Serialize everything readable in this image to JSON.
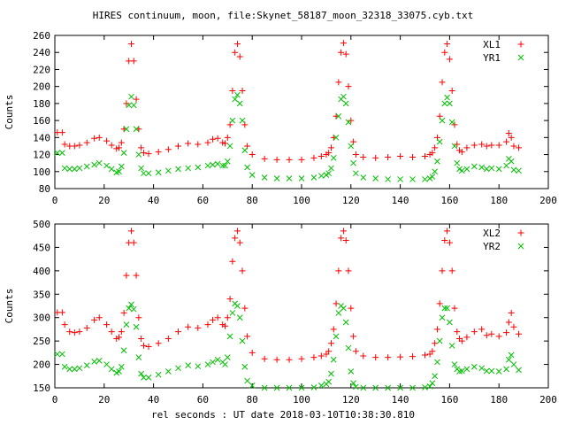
{
  "title": "HIRES continuum, moon, file:Skynet_58187_moon_32318_33075.cyb.txt",
  "xlabel": "rel seconds : UT date 2018-03-10T10:38:30.810",
  "colors": {
    "red": "#ff0000",
    "green": "#00c000"
  },
  "chart_data": [
    {
      "type": "scatter",
      "ylabel": "Counts",
      "xlim": [
        0,
        200
      ],
      "ylim": [
        80,
        260
      ],
      "xticks": [
        0,
        20,
        40,
        60,
        80,
        100,
        120,
        140,
        160,
        180,
        200
      ],
      "yticks": [
        80,
        100,
        120,
        140,
        160,
        180,
        200,
        220,
        240,
        260
      ],
      "legend": "top-right",
      "series": [
        {
          "name": "XL1",
          "marker": "+",
          "color": "#ff0000",
          "x": [
            1,
            3,
            4,
            6,
            8,
            10,
            13,
            16,
            18,
            21,
            23,
            25,
            26,
            27,
            28,
            29,
            30,
            31,
            32,
            33,
            34,
            35,
            36,
            38,
            42,
            46,
            50,
            54,
            58,
            62,
            64,
            66,
            68,
            69,
            70,
            71,
            72,
            73,
            74,
            75,
            76,
            77,
            78,
            80,
            85,
            90,
            95,
            100,
            105,
            108,
            110,
            111,
            112,
            113,
            114,
            115,
            116,
            117,
            118,
            119,
            120,
            121,
            122,
            125,
            130,
            135,
            140,
            145,
            150,
            152,
            153,
            154,
            155,
            156,
            157,
            158,
            159,
            160,
            161,
            162,
            163,
            164,
            165,
            167,
            170,
            173,
            175,
            177,
            180,
            183,
            184,
            185,
            186,
            188
          ],
          "y": [
            146,
            146,
            132,
            130,
            130,
            131,
            134,
            139,
            140,
            136,
            131,
            127,
            128,
            134,
            150,
            180,
            230,
            250,
            230,
            185,
            150,
            128,
            122,
            121,
            123,
            126,
            130,
            133,
            132,
            134,
            138,
            139,
            134,
            133,
            140,
            155,
            195,
            240,
            250,
            235,
            195,
            155,
            130,
            120,
            115,
            114,
            114,
            114,
            116,
            118,
            120,
            122,
            128,
            140,
            165,
            205,
            240,
            251,
            238,
            200,
            160,
            135,
            120,
            117,
            116,
            117,
            118,
            117,
            118,
            120,
            122,
            128,
            140,
            165,
            205,
            240,
            250,
            232,
            195,
            155,
            132,
            125,
            123,
            128,
            131,
            132,
            130,
            131,
            131,
            135,
            145,
            140,
            130,
            128
          ]
        },
        {
          "name": "YR1",
          "marker": "x",
          "color": "#00c000",
          "x": [
            1,
            3,
            4,
            6,
            8,
            10,
            13,
            16,
            18,
            21,
            23,
            25,
            26,
            27,
            28,
            29,
            30,
            31,
            32,
            33,
            34,
            35,
            36,
            38,
            42,
            46,
            50,
            54,
            58,
            62,
            64,
            66,
            68,
            69,
            70,
            71,
            72,
            73,
            74,
            75,
            76,
            77,
            78,
            80,
            85,
            90,
            95,
            100,
            105,
            108,
            110,
            111,
            112,
            113,
            114,
            115,
            116,
            117,
            118,
            119,
            120,
            121,
            122,
            125,
            130,
            135,
            140,
            145,
            150,
            152,
            153,
            154,
            155,
            156,
            157,
            158,
            159,
            160,
            161,
            162,
            163,
            164,
            165,
            167,
            170,
            173,
            175,
            177,
            180,
            183,
            184,
            185,
            186,
            188
          ],
          "y": [
            122,
            122,
            104,
            103,
            103,
            104,
            106,
            108,
            110,
            107,
            103,
            99,
            100,
            106,
            122,
            150,
            178,
            188,
            178,
            150,
            120,
            104,
            98,
            98,
            99,
            101,
            103,
            104,
            105,
            107,
            108,
            109,
            107,
            107,
            112,
            130,
            160,
            185,
            190,
            180,
            160,
            125,
            105,
            96,
            93,
            92,
            92,
            92,
            93,
            95,
            96,
            98,
            104,
            116,
            140,
            165,
            185,
            188,
            180,
            158,
            130,
            110,
            98,
            93,
            92,
            91,
            91,
            91,
            91,
            92,
            94,
            100,
            112,
            135,
            160,
            180,
            187,
            180,
            158,
            130,
            110,
            103,
            101,
            103,
            106,
            105,
            103,
            104,
            103,
            107,
            115,
            112,
            102,
            101
          ]
        }
      ]
    },
    {
      "type": "scatter",
      "ylabel": "Counts",
      "xlim": [
        0,
        200
      ],
      "ylim": [
        150,
        500
      ],
      "xticks": [
        0,
        20,
        40,
        60,
        80,
        100,
        120,
        140,
        160,
        180,
        200
      ],
      "yticks": [
        150,
        200,
        250,
        300,
        350,
        400,
        450,
        500
      ],
      "legend": "top-right",
      "series": [
        {
          "name": "XL2",
          "marker": "+",
          "color": "#ff0000",
          "x": [
            1,
            3,
            4,
            6,
            8,
            10,
            13,
            16,
            18,
            21,
            23,
            25,
            26,
            27,
            28,
            29,
            30,
            31,
            32,
            33,
            34,
            35,
            36,
            38,
            42,
            46,
            50,
            54,
            58,
            62,
            64,
            66,
            68,
            69,
            70,
            71,
            72,
            73,
            74,
            75,
            76,
            77,
            78,
            80,
            85,
            90,
            95,
            100,
            105,
            108,
            110,
            111,
            112,
            113,
            114,
            115,
            116,
            117,
            118,
            119,
            120,
            121,
            122,
            125,
            130,
            135,
            140,
            145,
            150,
            152,
            153,
            154,
            155,
            156,
            157,
            158,
            159,
            160,
            161,
            162,
            163,
            164,
            165,
            167,
            170,
            173,
            175,
            177,
            180,
            183,
            184,
            185,
            186,
            188
          ],
          "y": [
            311,
            311,
            285,
            270,
            268,
            270,
            278,
            295,
            300,
            285,
            270,
            255,
            258,
            270,
            310,
            390,
            460,
            485,
            460,
            390,
            300,
            255,
            240,
            238,
            245,
            255,
            270,
            280,
            278,
            285,
            295,
            300,
            285,
            282,
            300,
            340,
            420,
            470,
            485,
            460,
            400,
            320,
            260,
            225,
            212,
            210,
            210,
            212,
            215,
            218,
            222,
            228,
            245,
            275,
            330,
            400,
            470,
            485,
            465,
            400,
            320,
            260,
            228,
            218,
            215,
            215,
            216,
            217,
            220,
            222,
            228,
            245,
            275,
            330,
            400,
            465,
            485,
            460,
            400,
            320,
            270,
            255,
            250,
            258,
            270,
            275,
            262,
            265,
            260,
            268,
            290,
            310,
            280,
            265
          ]
        },
        {
          "name": "YR2",
          "marker": "x",
          "color": "#00c000",
          "x": [
            1,
            3,
            4,
            6,
            8,
            10,
            13,
            16,
            18,
            21,
            23,
            25,
            26,
            27,
            28,
            29,
            30,
            31,
            32,
            33,
            34,
            35,
            36,
            38,
            42,
            46,
            50,
            54,
            58,
            62,
            64,
            66,
            68,
            69,
            70,
            71,
            72,
            73,
            74,
            75,
            76,
            77,
            78,
            80,
            85,
            90,
            95,
            100,
            105,
            108,
            110,
            111,
            112,
            113,
            114,
            115,
            116,
            117,
            118,
            119,
            120,
            121,
            122,
            125,
            130,
            135,
            140,
            145,
            150,
            152,
            153,
            154,
            155,
            156,
            157,
            158,
            159,
            160,
            161,
            162,
            163,
            164,
            165,
            167,
            170,
            173,
            175,
            177,
            180,
            183,
            184,
            185,
            186,
            188
          ],
          "y": [
            222,
            222,
            195,
            190,
            190,
            192,
            198,
            206,
            208,
            200,
            190,
            182,
            185,
            195,
            230,
            285,
            320,
            328,
            318,
            280,
            215,
            180,
            172,
            172,
            178,
            185,
            192,
            198,
            196,
            200,
            205,
            210,
            205,
            200,
            215,
            260,
            310,
            330,
            325,
            300,
            250,
            195,
            165,
            155,
            150,
            150,
            150,
            150,
            151,
            155,
            158,
            163,
            180,
            210,
            260,
            310,
            325,
            320,
            290,
            235,
            185,
            160,
            152,
            150,
            150,
            150,
            150,
            150,
            151,
            153,
            160,
            175,
            205,
            250,
            300,
            320,
            320,
            290,
            240,
            200,
            190,
            185,
            186,
            190,
            195,
            192,
            186,
            186,
            185,
            190,
            210,
            220,
            200,
            188
          ]
        }
      ]
    }
  ]
}
